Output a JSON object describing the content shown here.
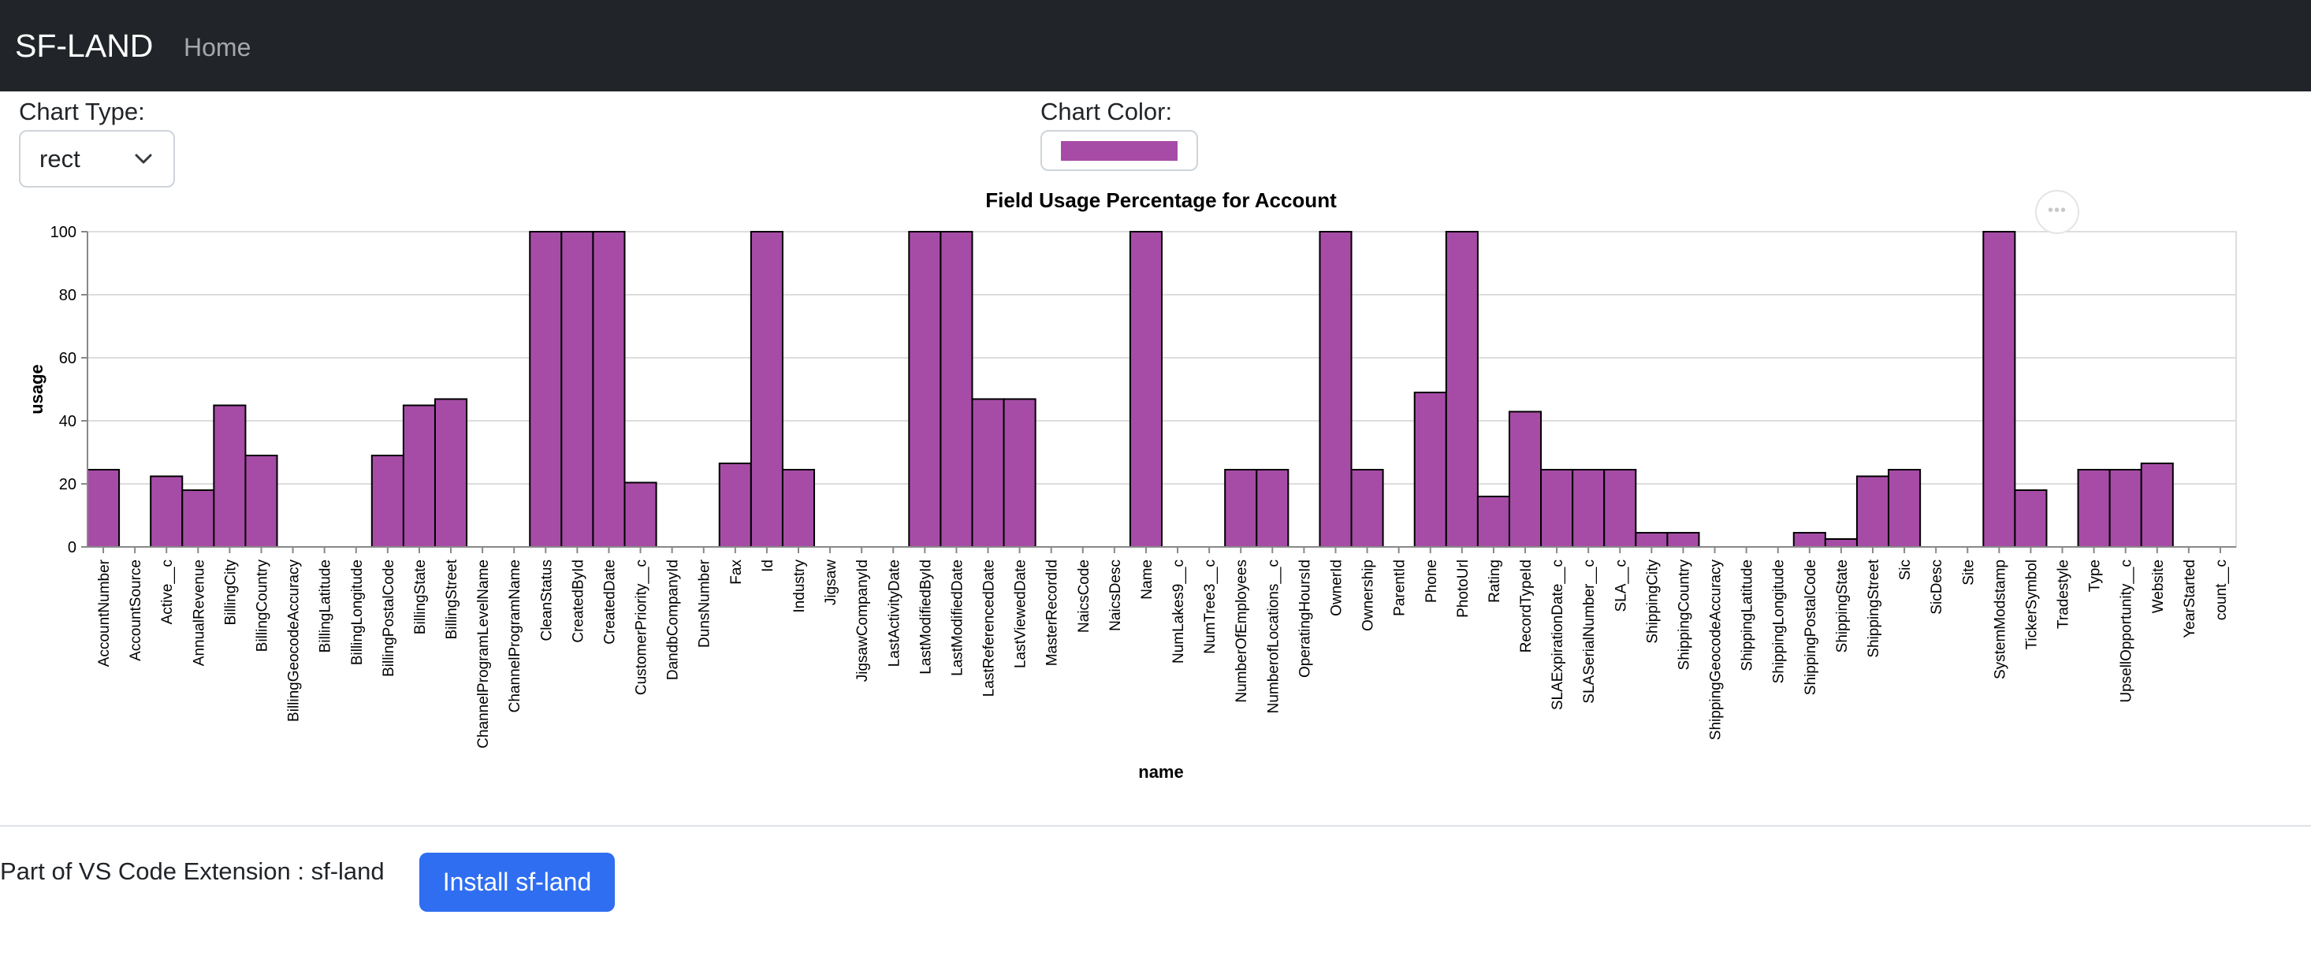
{
  "navbar": {
    "brand": "SF-LAND",
    "home_label": "Home"
  },
  "controls": {
    "chart_type_label": "Chart Type:",
    "chart_type_value": "rect",
    "chart_color_label": "Chart Color:",
    "chart_color_value": "#a64ca6"
  },
  "chart_data": {
    "type": "bar",
    "title": "Field Usage Percentage for Account",
    "xlabel": "name",
    "ylabel": "usage",
    "ylim": [
      0,
      100
    ],
    "yticks": [
      0,
      20,
      40,
      60,
      80,
      100
    ],
    "grid": true,
    "bar_color": "#a64ca6",
    "categories": [
      "AccountNumber",
      "AccountSource",
      "Active__c",
      "AnnualRevenue",
      "BillingCity",
      "BillingCountry",
      "BillingGeocodeAccuracy",
      "BillingLatitude",
      "BillingLongitude",
      "BillingPostalCode",
      "BillingState",
      "BillingStreet",
      "ChannelProgramLevelName",
      "ChannelProgramName",
      "CleanStatus",
      "CreatedById",
      "CreatedDate",
      "CustomerPriority__c",
      "DandbCompanyId",
      "DunsNumber",
      "Fax",
      "Id",
      "Industry",
      "Jigsaw",
      "JigsawCompanyId",
      "LastActivityDate",
      "LastModifiedById",
      "LastModifiedDate",
      "LastReferencedDate",
      "LastViewedDate",
      "MasterRecordId",
      "NaicsCode",
      "NaicsDesc",
      "Name",
      "NumLakes9__c",
      "NumTree3__c",
      "NumberOfEmployees",
      "NumberofLocations__c",
      "OperatingHoursId",
      "OwnerId",
      "Ownership",
      "ParentId",
      "Phone",
      "PhotoUrl",
      "Rating",
      "RecordTypeId",
      "SLAExpirationDate__c",
      "SLASerialNumber__c",
      "SLA__c",
      "ShippingCity",
      "ShippingCountry",
      "ShippingGeocodeAccuracy",
      "ShippingLatitude",
      "ShippingLongitude",
      "ShippingPostalCode",
      "ShippingState",
      "ShippingStreet",
      "Sic",
      "SicDesc",
      "Site",
      "SystemModstamp",
      "TickerSymbol",
      "Tradestyle",
      "Type",
      "UpsellOpportunity__c",
      "Website",
      "YearStarted",
      "count__c"
    ],
    "values": [
      24.5,
      0,
      22.4,
      18,
      44.9,
      29,
      0,
      0,
      0,
      29,
      44.9,
      46.9,
      0,
      0,
      100,
      100,
      100,
      20.4,
      0,
      0,
      26.5,
      100,
      24.5,
      0,
      0,
      0,
      100,
      100,
      46.9,
      46.9,
      0,
      0,
      0,
      100,
      0,
      0,
      24.5,
      24.5,
      0,
      100,
      24.5,
      0,
      49,
      100,
      16,
      42.9,
      24.5,
      24.5,
      24.5,
      4.5,
      4.5,
      0,
      0,
      0,
      4.5,
      2.5,
      22.4,
      24.5,
      0,
      0,
      100,
      18,
      0,
      24.5,
      24.5,
      26.5,
      0,
      0
    ]
  },
  "footer": {
    "text": "Part of VS Code Extension : sf-land",
    "install_label": "Install sf-land"
  }
}
